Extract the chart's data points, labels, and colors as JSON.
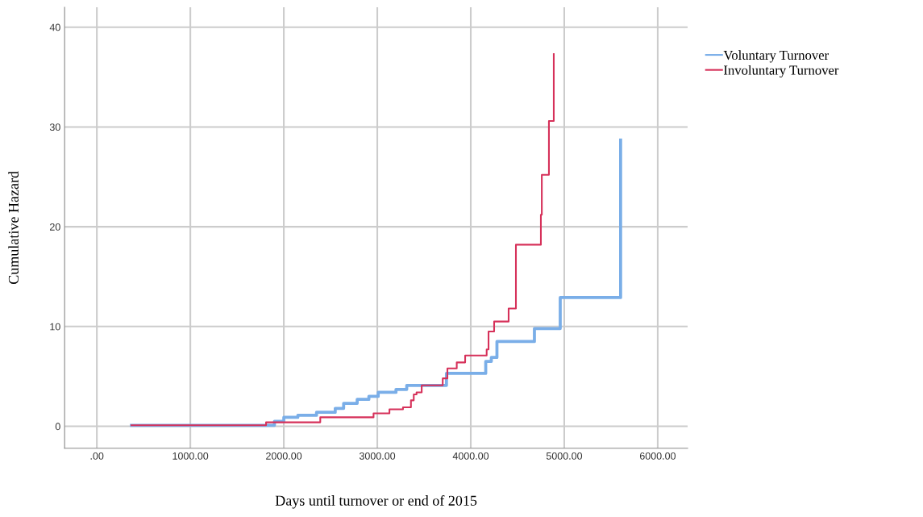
{
  "chart_data": {
    "type": "step",
    "xlabel": "Days until turnover or end of 2015",
    "ylabel": "Cumulative Hazard",
    "xlim": [
      -345,
      6320
    ],
    "ylim": [
      -2.2,
      42
    ],
    "xticks": [
      {
        "value": 0,
        "label": ".00"
      },
      {
        "value": 1000,
        "label": "1000.00"
      },
      {
        "value": 2000,
        "label": "2000.00"
      },
      {
        "value": 3000,
        "label": "3000.00"
      },
      {
        "value": 4000,
        "label": "4000.00"
      },
      {
        "value": 5000,
        "label": "5000.00"
      },
      {
        "value": 6000,
        "label": "6000.00"
      }
    ],
    "yticks": [
      0,
      10,
      20,
      30,
      40
    ],
    "grid": true,
    "legend": "right",
    "series": [
      {
        "name": "Voluntary Turnover",
        "color": "#7aaee8",
        "x": [
          370,
          1810,
          1900,
          2000,
          2150,
          2350,
          2550,
          2640,
          2785,
          2910,
          3010,
          3200,
          3315,
          3740,
          4160,
          4220,
          4280,
          4681,
          4957,
          5603
        ],
        "values": [
          0.1,
          0.1,
          0.5,
          0.9,
          1.1,
          1.4,
          1.8,
          2.3,
          2.7,
          3.0,
          3.4,
          3.7,
          4.1,
          5.3,
          6.5,
          6.9,
          8.5,
          9.8,
          12.9,
          28.7
        ]
      },
      {
        "name": "Involuntary Turnover",
        "color": "#d6315a",
        "x": [
          370,
          1810,
          2390,
          2960,
          3130,
          3275,
          3360,
          3390,
          3420,
          3475,
          3700,
          3750,
          3850,
          3940,
          4170,
          4190,
          4250,
          4405,
          4483,
          4750,
          4760,
          4836,
          4888
        ],
        "values": [
          0.1,
          0.4,
          0.9,
          1.3,
          1.7,
          1.9,
          2.6,
          3.2,
          3.4,
          4.1,
          4.8,
          5.8,
          6.4,
          7.1,
          7.7,
          9.5,
          10.5,
          11.8,
          18.2,
          21.2,
          25.2,
          30.6,
          37.3
        ]
      }
    ]
  }
}
